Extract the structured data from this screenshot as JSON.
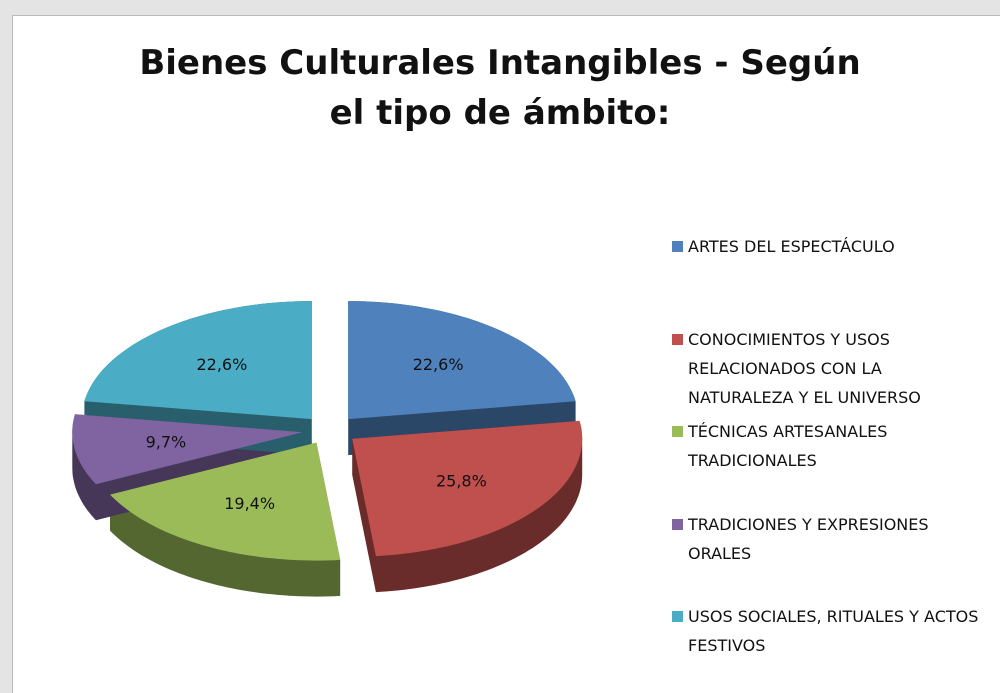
{
  "chart_data": {
    "type": "pie",
    "title": "Bienes Culturales Intangibles - Según el tipo de ámbito:",
    "categories": [
      "ARTES DEL ESPECTÁCULO",
      "CONOCIMIENTOS Y USOS RELACIONADOS CON LA NATURALEZA Y EL UNIVERSO",
      "TÉCNICAS ARTESANALES TRADICIONALES",
      "TRADICIONES Y EXPRESIONES ORALES",
      "USOS SOCIALES, RITUALES Y ACTOS FESTIVOS"
    ],
    "values": [
      22.6,
      25.8,
      19.4,
      9.7,
      22.6
    ],
    "value_labels": [
      "22,6%",
      "25,8%",
      "19,4%",
      "9,7%",
      "22,6%"
    ],
    "colors": [
      "#4f81bd",
      "#c0504d",
      "#9bbb59",
      "#8064a2",
      "#4bacc6"
    ],
    "legend": "right"
  }
}
